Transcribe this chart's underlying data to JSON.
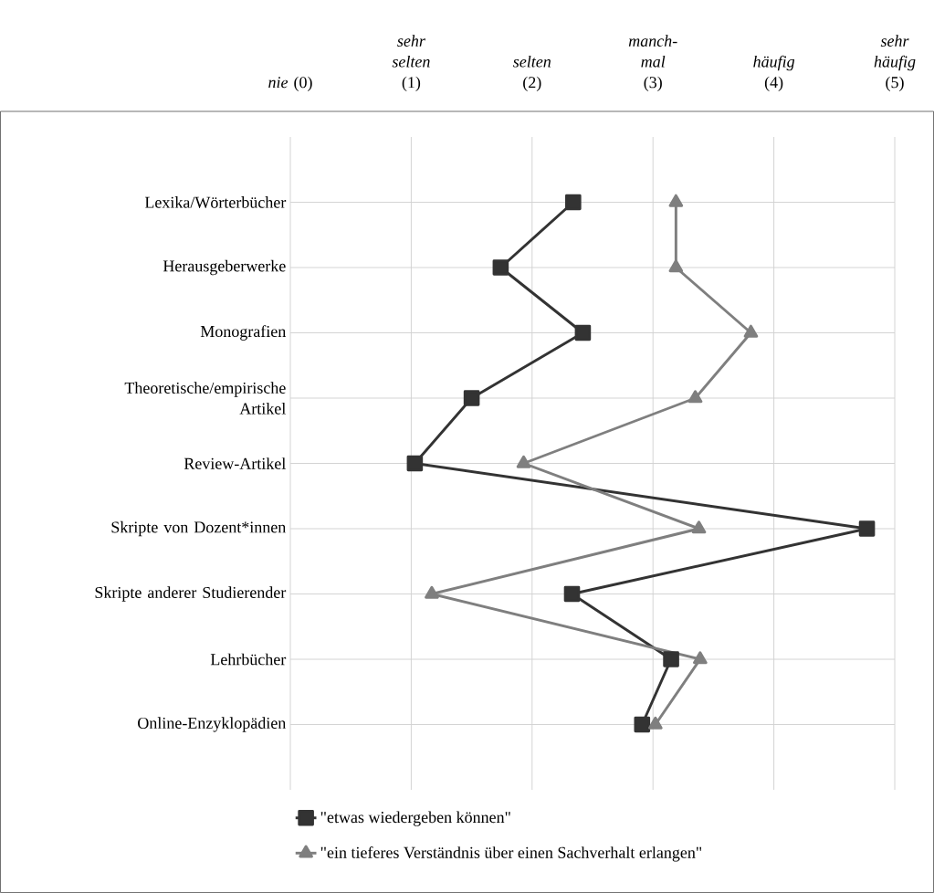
{
  "chart_data": {
    "type": "line",
    "orientation": "horizontal",
    "categories": [
      "Lexika/Wörterbücher",
      "Herausgeberwerke",
      "Monografien",
      "Theoretische/empirische Artikel",
      "Review-Artikel",
      "Skripte von Dozent*innen",
      "Skripte anderer Studierender",
      "Lehrbücher",
      "Online-Enzyklopädien"
    ],
    "xlim": [
      0,
      5
    ],
    "xticks": [
      {
        "value": 0,
        "label": "*nie* (0)"
      },
      {
        "value": 1,
        "label": "*sehr selten* (1)"
      },
      {
        "value": 2,
        "label": "*selten* (2)"
      },
      {
        "value": 3,
        "label": "*manch-mal* (3)"
      },
      {
        "value": 4,
        "label": "*häufig* (4)"
      },
      {
        "value": 5,
        "label": "*sehr häufig* (5)"
      }
    ],
    "series": [
      {
        "name": "\"etwas wiedergeben können\"",
        "color": "#333333",
        "marker": "square",
        "values": [
          2.34,
          1.74,
          2.42,
          1.5,
          1.03,
          4.77,
          2.33,
          3.15,
          2.91
        ]
      },
      {
        "name": "\"ein tieferes Verständnis über einen Sachverhalt erlangen\"",
        "color": "#7f7f7f",
        "marker": "triangle",
        "values": [
          3.19,
          3.19,
          3.81,
          3.35,
          1.93,
          3.38,
          1.17,
          3.39,
          3.02
        ]
      }
    ],
    "grid": true,
    "legend": "bottom"
  }
}
